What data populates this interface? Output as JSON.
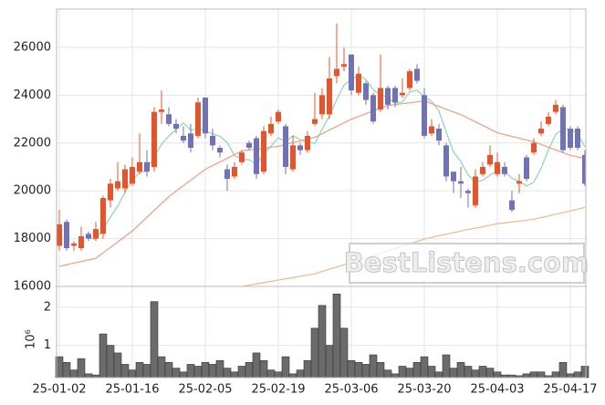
{
  "chart_data": [
    {
      "type": "candlestick",
      "categories": [
        "25-01-02",
        null,
        null,
        null,
        null,
        null,
        null,
        null,
        null,
        null,
        "25-01-16",
        null,
        null,
        null,
        null,
        null,
        null,
        null,
        null,
        null,
        "25-02-05",
        null,
        null,
        null,
        null,
        null,
        null,
        null,
        null,
        null,
        "25-02-19",
        null,
        null,
        null,
        null,
        null,
        null,
        null,
        null,
        null,
        "25-03-06",
        null,
        null,
        null,
        null,
        null,
        null,
        null,
        null,
        null,
        "25-03-20",
        null,
        null,
        null,
        null,
        null,
        null,
        null,
        null,
        null,
        "25-04-03",
        null,
        null,
        null,
        null,
        null,
        null,
        null,
        null,
        null,
        "25-04-17",
        null,
        null
      ],
      "open": [
        17700,
        18700,
        17700,
        17600,
        18200,
        18000,
        18200,
        19600,
        20100,
        20100,
        20300,
        20800,
        21200,
        21000,
        23300,
        23200,
        22800,
        22300,
        22400,
        22300,
        23900,
        22300,
        21800,
        20900,
        20600,
        21200,
        22000,
        22200,
        20800,
        22400,
        22900,
        22700,
        20900,
        21900,
        21700,
        22800,
        23200,
        23200,
        24800,
        25200,
        25700,
        24100,
        24500,
        24000,
        23400,
        24300,
        24300,
        24000,
        24300,
        25100,
        24000,
        22400,
        22600,
        21900,
        20800,
        20400,
        20000,
        19400,
        20700,
        21100,
        20700,
        21000,
        19600,
        20300,
        21400,
        21600,
        22400,
        22800,
        23300,
        23500,
        22600,
        22600,
        21500
      ],
      "high": [
        19200,
        18800,
        17900,
        18500,
        18300,
        18700,
        19800,
        20500,
        21200,
        21100,
        21400,
        22400,
        21700,
        23500,
        24200,
        23500,
        23000,
        22700,
        22800,
        23900,
        23900,
        22600,
        21900,
        21100,
        21200,
        21700,
        22100,
        22300,
        22700,
        23100,
        23400,
        22800,
        22300,
        22000,
        22500,
        24100,
        24300,
        25600,
        27000,
        26000,
        25700,
        25200,
        24600,
        24100,
        25700,
        24400,
        24400,
        24700,
        25100,
        25300,
        24300,
        23000,
        22800,
        22000,
        20800,
        21000,
        20100,
        20900,
        21200,
        21900,
        21600,
        21200,
        20000,
        20700,
        21500,
        22200,
        22900,
        23300,
        23800,
        23600,
        22700,
        22700,
        21700
      ],
      "low": [
        17500,
        17500,
        17500,
        17500,
        17900,
        17900,
        18000,
        19300,
        20000,
        19900,
        20200,
        20700,
        20600,
        20800,
        22800,
        22700,
        22400,
        22000,
        21600,
        22200,
        22200,
        21700,
        21400,
        20000,
        20500,
        21100,
        21700,
        20500,
        20700,
        22300,
        22800,
        20700,
        20800,
        21500,
        21600,
        22700,
        23000,
        23000,
        24500,
        25000,
        24000,
        24000,
        23600,
        22800,
        23300,
        23400,
        23500,
        23900,
        24200,
        24500,
        22200,
        22300,
        21900,
        20400,
        19900,
        19700,
        19300,
        19300,
        20600,
        21000,
        20600,
        20600,
        19100,
        19900,
        20400,
        21500,
        22300,
        22700,
        23200,
        21600,
        21700,
        21700,
        20200
      ],
      "close": [
        18600,
        17600,
        17800,
        18100,
        18000,
        18400,
        19700,
        20300,
        20400,
        20900,
        21000,
        21200,
        20800,
        23300,
        23400,
        22800,
        22600,
        22100,
        21800,
        23700,
        22400,
        21900,
        21600,
        20500,
        21000,
        21600,
        21800,
        20700,
        22500,
        22800,
        23300,
        21000,
        21900,
        21700,
        22300,
        23000,
        24000,
        24700,
        25100,
        25300,
        24200,
        24900,
        23800,
        22900,
        24300,
        23600,
        23700,
        24100,
        25000,
        24600,
        22300,
        22700,
        22100,
        20600,
        20400,
        20300,
        19900,
        20600,
        21000,
        21500,
        21200,
        20700,
        19200,
        20400,
        20500,
        22000,
        22600,
        23100,
        23600,
        21700,
        21800,
        21800,
        20300
      ],
      "up_color": "#e8542a",
      "down_color": "#6f72b5",
      "series": [
        {
          "color": "#8fd9b6",
          "values": [
            null,
            null,
            null,
            null,
            18020,
            17980,
            18400,
            18900,
            19360,
            19940,
            20460,
            20760,
            20860,
            21440,
            21940,
            22300,
            22580,
            22840,
            22540,
            22600,
            22520,
            22380,
            22280,
            22020,
            21480,
            21320,
            21300,
            21120,
            21520,
            21880,
            22220,
            22060,
            22300,
            22140,
            22040,
            21980,
            22580,
            23140,
            23820,
            24420,
            24660,
            24840,
            24660,
            24220,
            24020,
            23900,
            23660,
            23720,
            24140,
            24200,
            23940,
            23740,
            23340,
            22460,
            21620,
            21220,
            20660,
            20360,
            20440,
            20660,
            20840,
            20800,
            20520,
            20400,
            20200,
            20360,
            20940,
            21720,
            22360,
            22600,
            22560,
            22400,
            21840
          ]
        },
        {
          "color": "#eba58a",
          "values": [
            16840,
            16908,
            16976,
            17044,
            17112,
            17180,
            17408,
            17636,
            17864,
            18092,
            18320,
            18608,
            18896,
            19184,
            19472,
            19760,
            19988,
            20216,
            20444,
            20672,
            20900,
            21054,
            21208,
            21362,
            21516,
            21670,
            21708,
            21746,
            21784,
            21822,
            21860,
            21936,
            22012,
            22088,
            22164,
            22240,
            22392,
            22544,
            22696,
            22848,
            23000,
            23114,
            23228,
            23342,
            23456,
            23570,
            23608,
            23646,
            23684,
            23722,
            23760,
            23646,
            23532,
            23418,
            23304,
            23190,
            23038,
            22886,
            22734,
            22582,
            22430,
            22354,
            22278,
            22202,
            22126,
            22050,
            21936,
            21822,
            21708,
            21594,
            21480,
            21420,
            21360
          ]
        },
        {
          "color": "#ebbc98",
          "values": [
            null,
            null,
            null,
            null,
            null,
            null,
            null,
            null,
            null,
            null,
            null,
            null,
            null,
            null,
            null,
            null,
            null,
            null,
            null,
            null,
            null,
            null,
            null,
            null,
            null,
            16000,
            16053,
            16106,
            16159,
            16212,
            16265,
            16318,
            16371,
            16424,
            16477,
            16530,
            16625,
            16720,
            16815,
            16910,
            17005,
            17100,
            17195,
            17290,
            17385,
            17480,
            17580,
            17680,
            17780,
            17880,
            17980,
            18048,
            18116,
            18184,
            18252,
            18320,
            18380,
            18440,
            18500,
            18560,
            18620,
            18658,
            18696,
            18734,
            18772,
            18810,
            18880,
            18950,
            19020,
            19090,
            19160,
            19230,
            19300
          ]
        }
      ],
      "ylim": [
        16000,
        27600
      ],
      "yticks": [
        16000,
        18000,
        20000,
        22000,
        24000,
        26000
      ],
      "grid": true,
      "annotation": "BestListens.com"
    },
    {
      "type": "bar",
      "ylabel": "10⁶",
      "color": "#6b6b6b",
      "values": [
        0.7,
        0.55,
        0.35,
        0.65,
        0.25,
        0.22,
        1.3,
        1.0,
        0.8,
        0.5,
        0.35,
        0.55,
        0.5,
        2.15,
        0.7,
        0.55,
        0.4,
        0.3,
        0.5,
        0.45,
        0.55,
        0.5,
        0.6,
        0.4,
        0.3,
        0.45,
        0.55,
        0.8,
        0.6,
        0.35,
        0.3,
        0.7,
        0.25,
        0.35,
        0.6,
        1.45,
        2.05,
        1.0,
        2.35,
        1.45,
        0.6,
        0.55,
        0.5,
        0.75,
        0.55,
        0.35,
        0.25,
        0.45,
        0.4,
        0.55,
        0.7,
        0.45,
        0.3,
        0.75,
        0.4,
        0.55,
        0.45,
        0.35,
        0.45,
        0.4,
        0.3,
        0.22,
        0.22,
        0.2,
        0.25,
        0.3,
        0.3,
        0.2,
        0.3,
        0.55,
        0.25,
        0.3,
        0.45
      ],
      "ylim": [
        0.15,
        2.55
      ],
      "yticks": [
        1,
        2
      ]
    }
  ]
}
